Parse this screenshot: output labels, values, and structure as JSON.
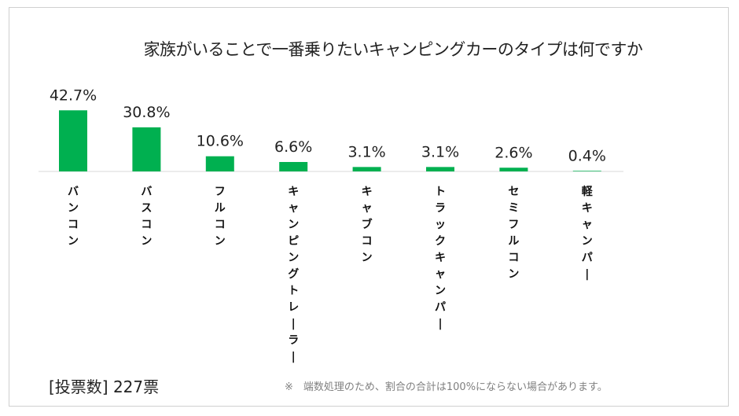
{
  "chart_data": {
    "type": "bar",
    "title": "家族がいることで一番乗りたいキャンピングカーのタイプは何ですか",
    "categories": [
      "バンコン",
      "バスコン",
      "フルコン",
      "キャンピングトレーラー",
      "キャブコン",
      "トラックキャンパー",
      "セミフルコン",
      "軽キャンパー"
    ],
    "values": [
      42.7,
      30.8,
      10.6,
      6.6,
      3.1,
      3.1,
      2.6,
      0.4
    ],
    "value_labels": [
      "42.7%",
      "30.8%",
      "10.6%",
      "6.6%",
      "3.1%",
      "3.1%",
      "2.6%",
      "0.4%"
    ],
    "xlabel": "",
    "ylabel": "",
    "ylim": [
      0,
      100
    ],
    "grid": false,
    "bar_color": "#00b050"
  },
  "footer": {
    "votes": "[投票数] 227票",
    "note": "※　端数処理のため、割合の合計は100%にならない場合があります。"
  }
}
